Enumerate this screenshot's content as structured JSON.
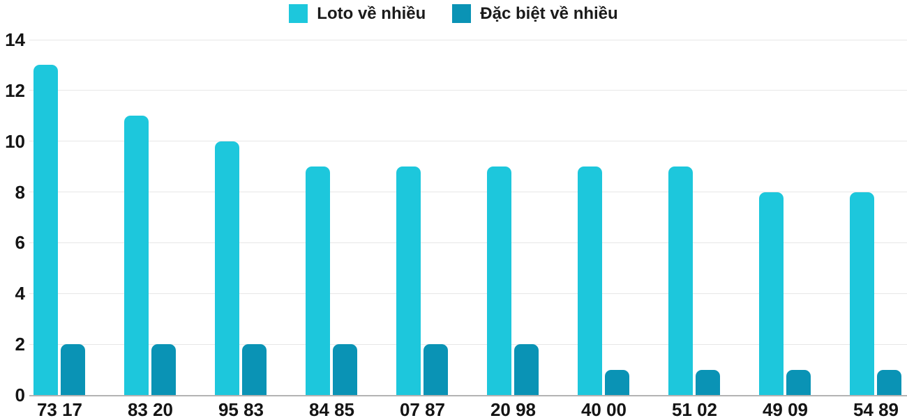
{
  "chart_data": {
    "type": "bar",
    "title": "",
    "xlabel": "",
    "ylabel": "",
    "categories": [
      "73 17",
      "83 20",
      "95 83",
      "84 85",
      "07 87",
      "20 98",
      "40 00",
      "51 02",
      "49 09",
      "54 89"
    ],
    "series": [
      {
        "name": "Loto về nhiều",
        "color": "#1DC7DC",
        "values": [
          13,
          11,
          10,
          9,
          9,
          9,
          9,
          9,
          8,
          8
        ]
      },
      {
        "name": "Đặc biệt về nhiều",
        "color": "#0A93B5",
        "values": [
          2,
          2,
          2,
          2,
          2,
          2,
          1,
          1,
          1,
          1
        ]
      }
    ],
    "ylim": [
      0,
      14
    ],
    "yticks": [
      0,
      2,
      4,
      6,
      8,
      10,
      12,
      14
    ],
    "grid": true,
    "legend_position": "top-center",
    "colors": {
      "gridline": "#e7e7e7",
      "baseline": "#b3b3b3",
      "tick_text": "#141414",
      "legend_text": "#1b1b1b",
      "background": "#ffffff"
    }
  }
}
